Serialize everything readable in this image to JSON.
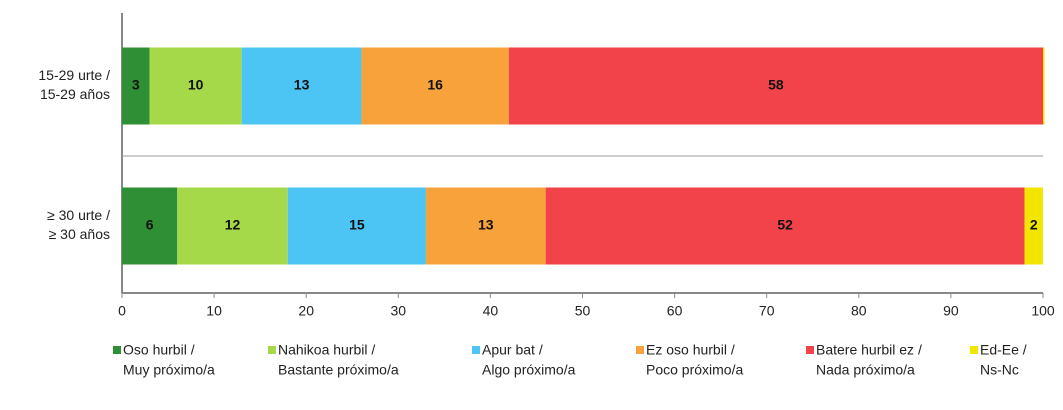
{
  "chart_data": {
    "type": "stacked-bar-horizontal",
    "categories": [
      [
        "15-29 urte /",
        "15-29 años"
      ],
      [
        "≥ 30 urte /",
        "≥ 30 años"
      ]
    ],
    "series": [
      {
        "name": [
          "Oso hurbil /",
          "Muy próximo/a"
        ],
        "color": "#2f8f35",
        "values": [
          3,
          6
        ]
      },
      {
        "name": [
          "Nahikoa hurbil /",
          "Bastante próximo/a"
        ],
        "color": "#a6d94a",
        "values": [
          10,
          12
        ]
      },
      {
        "name": [
          "Apur bat /",
          "Algo próximo/a"
        ],
        "color": "#4cc4f4",
        "values": [
          13,
          15
        ]
      },
      {
        "name": [
          "Ez oso hurbil /",
          "Poco próximo/a"
        ],
        "color": "#f7a23a",
        "values": [
          16,
          13
        ]
      },
      {
        "name": [
          "Batere hurbil ez /",
          "Nada próximo/a"
        ],
        "color": "#f2434b",
        "values": [
          58,
          52
        ]
      },
      {
        "name": [
          "Ed-Ee /",
          "Ns-Nc"
        ],
        "color": "#f2e600",
        "values": [
          0,
          2
        ]
      }
    ],
    "xlim": [
      0,
      100
    ],
    "xticks": [
      0,
      10,
      20,
      30,
      40,
      50,
      60,
      70,
      80,
      90,
      100
    ],
    "legend": "bottom"
  }
}
